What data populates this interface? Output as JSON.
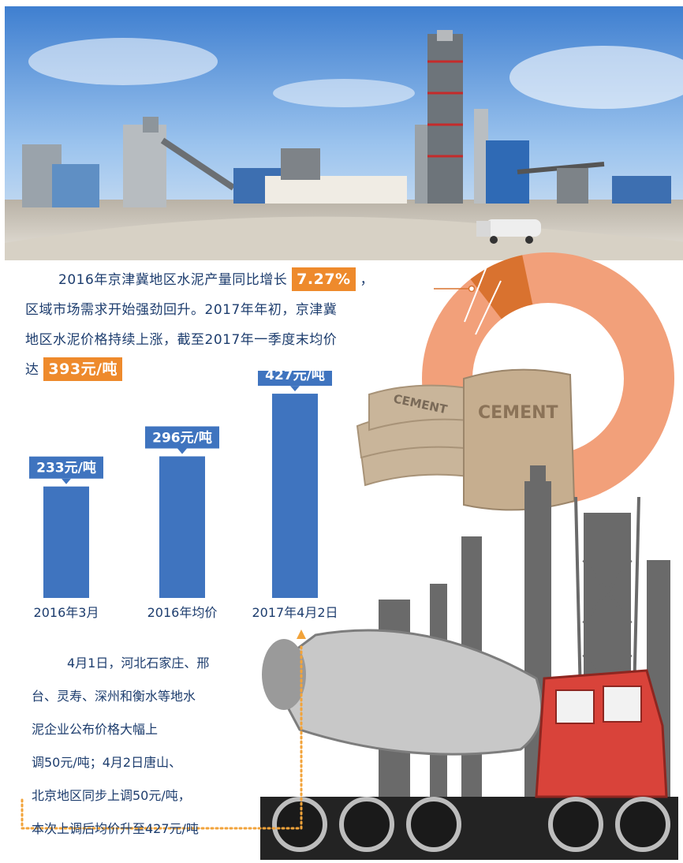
{
  "intro": {
    "line1_prefix": "2016年京津冀地区水泥产量同比增长",
    "growth": "7.27%",
    "line1_suffix": "，",
    "line2": "区域市场需求开始强劲回升。2017年年初，京津冀",
    "line3": "地区水泥价格持续上涨，截至2017年一季度末均价",
    "line4_prefix": "达",
    "q1_avg_price": "393元/吨"
  },
  "bag_labels": {
    "front": "CEMENT",
    "back": "CEMENT"
  },
  "chart_data": {
    "type": "bar",
    "categories": [
      "2016年3月",
      "2016年均价",
      "2017年4月2日"
    ],
    "values": [
      233,
      296,
      427
    ],
    "value_labels": [
      "233元/吨",
      "296元/吨",
      "427元/吨"
    ],
    "unit": "元/吨",
    "bar_color": "#3f74bf",
    "ylim": [
      0,
      470
    ]
  },
  "donut_data": {
    "type": "donut",
    "highlight_fraction": 0.0727,
    "colors": {
      "main": "#f2a07a",
      "highlight": "#d9722f"
    }
  },
  "footer": {
    "lines": [
      "4月1日，河北石家庄、邢",
      "台、灵寿、深州和衡水等地水",
      "泥企业公布价格大幅上",
      "调50元/吨；4月2日唐山、",
      "北京地区同步上调50元/吨，",
      "本次上调后均价升至427元/吨"
    ]
  },
  "colors": {
    "text": "#1d3d6e",
    "highlight_bg": "#ee8a2c",
    "dots": "#f2a33a"
  }
}
